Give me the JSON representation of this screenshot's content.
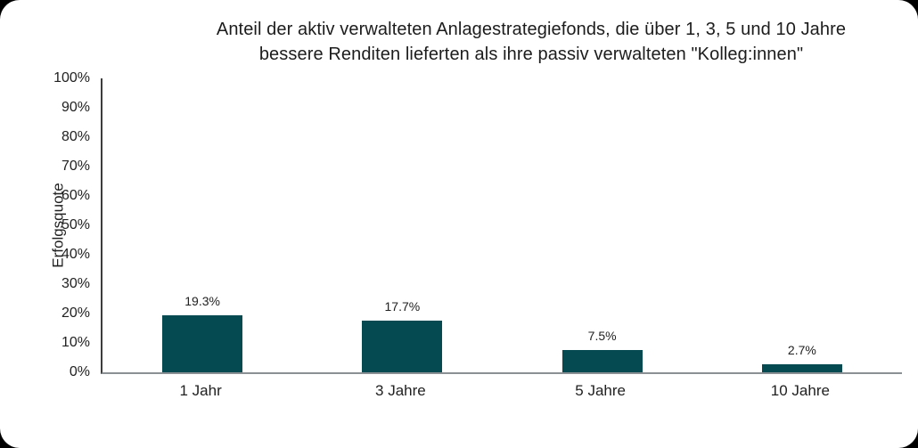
{
  "figure": {
    "title_line1": "Anteil der aktiv verwalteten Anlagestrategiefonds, die über 1, 3, 5 und 10 Jahre",
    "title_line2": "bessere Renditen lieferten als ihre passiv verwalteten \"Kolleg:innen\""
  },
  "chart_data": {
    "type": "bar",
    "title": "Anteil der aktiv verwalteten Anlagestrategiefonds, die über 1, 3, 5 und 10 Jahre bessere Renditen lieferten als ihre passiv verwalteten \"Kolleg:innen\"",
    "categories": [
      "1 Jahr",
      "3 Jahre",
      "5 Jahre",
      "10 Jahre"
    ],
    "values": [
      19.3,
      17.7,
      7.5,
      2.7
    ],
    "value_labels": [
      "19.3%",
      "17.7%",
      "7.5%",
      "2.7%"
    ],
    "xlabel": "",
    "ylabel": "Erfolgsquote",
    "ylim": [
      0,
      100
    ],
    "ytick_step": 10,
    "ytick_labels": [
      "0%",
      "10%",
      "20%",
      "30%",
      "40%",
      "50%",
      "60%",
      "70%",
      "80%",
      "90%",
      "100%"
    ],
    "grid": false,
    "legend": "none",
    "bar_color": "#044a50",
    "axis_y_color": "#3d3d3d",
    "axis_x_color": "#8b9094"
  }
}
